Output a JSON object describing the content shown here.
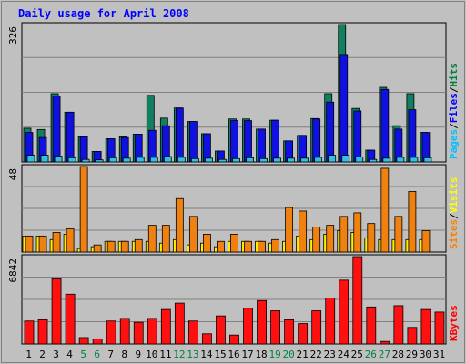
{
  "chart_data": {
    "type": "bar",
    "title": "Daily usage for April 2008",
    "categories": [
      "1",
      "2",
      "3",
      "4",
      "5",
      "6",
      "7",
      "8",
      "9",
      "10",
      "11",
      "12",
      "13",
      "14",
      "15",
      "16",
      "17",
      "18",
      "19",
      "20",
      "21",
      "22",
      "23",
      "24",
      "25",
      "26",
      "27",
      "28",
      "29",
      "30",
      "31"
    ],
    "weekend_days": [
      "5",
      "6",
      "12",
      "13",
      "19",
      "20",
      "26",
      "27"
    ],
    "panels": [
      {
        "key": "hits",
        "ymax_label": "326",
        "ylim": [
          0,
          326
        ],
        "axis_labels": [
          {
            "text": "Pages",
            "color": "#00c0ff"
          },
          {
            "text": "Files",
            "color": "#0000ff"
          },
          {
            "text": "Hits",
            "color": "#008040"
          }
        ],
        "series": [
          {
            "name": "Hits",
            "color": "#108060",
            "values": [
              80,
              77,
              162,
              118,
              60,
              25,
              55,
              60,
              66,
              158,
              104,
              128,
              96,
              67,
              26,
              102,
              102,
              78,
              99,
              50,
              63,
              103,
              162,
              326,
              127,
              28,
              177,
              86,
              162,
              70,
              0
            ]
          },
          {
            "name": "Files",
            "color": "#1010e0",
            "values": [
              70,
              58,
              156,
              118,
              60,
              25,
              55,
              58,
              66,
              75,
              86,
              128,
              96,
              67,
              26,
              98,
              98,
              78,
              99,
              50,
              63,
              102,
              142,
              255,
              121,
              28,
              172,
              78,
              124,
              70,
              0
            ]
          },
          {
            "name": "Pages",
            "color": "#30c0e0",
            "values": [
              16,
              16,
              14,
              10,
              6,
              5,
              10,
              9,
              11,
              11,
              13,
              11,
              8,
              9,
              6,
              8,
              10,
              8,
              9,
              9,
              9,
              11,
              16,
              16,
              12,
              6,
              9,
              11,
              11,
              10,
              0
            ]
          }
        ]
      },
      {
        "key": "visits",
        "ymax_label": "48",
        "ylim": [
          0,
          48
        ],
        "axis_labels": [
          {
            "text": "Sites",
            "color": "#ff8000"
          },
          {
            "text": "Visits",
            "color": "#ffff00"
          }
        ],
        "series": [
          {
            "name": "Visits",
            "color": "#f08010",
            "values": [
              9,
              9,
              11,
              13,
              48,
              4,
              6,
              6,
              7,
              15,
              15,
              30,
              20,
              10,
              6,
              10,
              6,
              6,
              7,
              25,
              23,
              14,
              15,
              20,
              22,
              16,
              47,
              20,
              34,
              12,
              0
            ]
          },
          {
            "name": "Sites",
            "color": "#ffee00",
            "values": [
              9,
              9,
              7,
              10,
              2,
              3,
              6,
              6,
              6,
              6,
              5,
              7,
              4,
              5,
              3,
              6,
              6,
              6,
              5,
              6,
              9,
              7,
              10,
              12,
              11,
              8,
              7,
              7,
              7,
              7,
              0
            ]
          }
        ]
      },
      {
        "key": "kbytes",
        "ymax_label": "6842",
        "ylim": [
          0,
          6842
        ],
        "axis_labels": [
          {
            "text": "KBytes",
            "color": "#ff0000"
          }
        ],
        "series": [
          {
            "name": "KBytes",
            "color": "#ff1010",
            "values": [
              1800,
              1900,
              5100,
              3900,
              500,
              400,
              1800,
              2000,
              1700,
              2000,
              2700,
              3200,
              1800,
              800,
              2200,
              700,
              2800,
              3400,
              2600,
              1900,
              1600,
              2600,
              3600,
              5000,
              6842,
              2900,
              200,
              3000,
              1300,
              2700,
              2500
            ]
          }
        ]
      }
    ]
  },
  "colors": {
    "background": "#c0c0c0",
    "plot_area": "#c0c0c0",
    "grid": "#808080",
    "border": "#808080",
    "title": "#0000ff",
    "weekday_label": "#000000",
    "weekend_label": "#008040"
  }
}
